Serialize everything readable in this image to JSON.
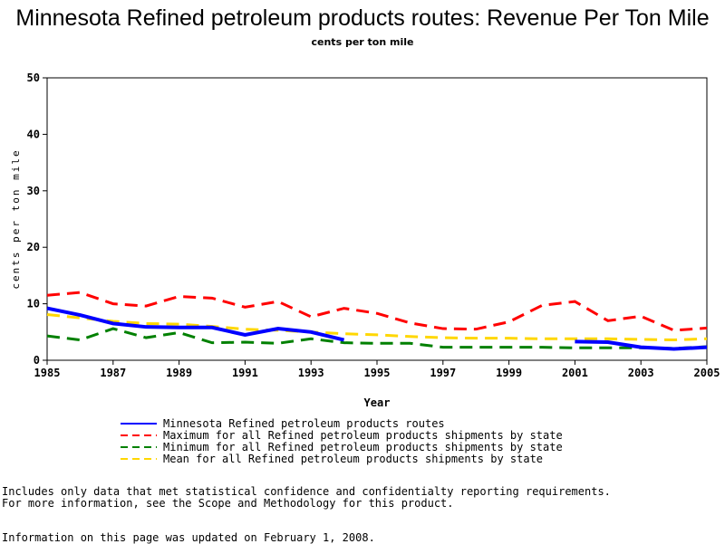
{
  "chart_data": {
    "type": "line",
    "title": "Minnesota Refined petroleum products routes: Revenue Per Ton Mile",
    "subtitle": "cents per ton mile",
    "xlabel": "Year",
    "ylabel": "cents per ton mile",
    "xlim": [
      1985,
      2005
    ],
    "ylim": [
      0,
      50
    ],
    "xticks": [
      "1985",
      "1987",
      "1989",
      "1991",
      "1993",
      "1995",
      "1997",
      "1999",
      "2001",
      "2003",
      "2005"
    ],
    "yticks": [
      "0",
      "10",
      "20",
      "30",
      "40",
      "50"
    ],
    "series": [
      {
        "name": "Minnesota Refined petroleum products routes",
        "color": "#0000ff",
        "style": "solid",
        "segments": [
          {
            "x": [
              1985,
              1986,
              1987,
              1988,
              1989,
              1990,
              1991,
              1992,
              1993,
              1994
            ],
            "y": [
              9.2,
              8.0,
              6.5,
              5.9,
              5.8,
              5.8,
              4.5,
              5.6,
              5.0,
              3.6
            ]
          },
          {
            "x": [
              2001,
              2002,
              2003,
              2004,
              2005
            ],
            "y": [
              3.3,
              3.2,
              2.3,
              2.0,
              2.3
            ]
          }
        ]
      },
      {
        "name": "Maximum for all Refined petroleum products shipments by state",
        "color": "#ff0000",
        "style": "dashed",
        "segments": [
          {
            "x": [
              1985,
              1986,
              1987,
              1988,
              1989,
              1990,
              1991,
              1992,
              1993,
              1994,
              1995,
              1996,
              1997,
              1998,
              1999,
              2000,
              2001,
              2002,
              2003,
              2004,
              2005
            ],
            "y": [
              11.5,
              12.0,
              10.0,
              9.6,
              11.3,
              11.0,
              9.4,
              10.4,
              7.7,
              9.2,
              8.3,
              6.6,
              5.6,
              5.5,
              6.8,
              9.7,
              10.4,
              7.0,
              7.8,
              5.3,
              5.7
            ]
          }
        ]
      },
      {
        "name": "Minimum for all Refined petroleum products shipments by state",
        "color": "#008000",
        "style": "dashed",
        "segments": [
          {
            "x": [
              1985,
              1986,
              1987,
              1988,
              1989,
              1990,
              1991,
              1992,
              1993,
              1994,
              1995,
              1996,
              1997,
              1998,
              1999,
              2000,
              2001,
              2002,
              2003,
              2004,
              2005
            ],
            "y": [
              4.3,
              3.6,
              5.6,
              4.0,
              4.9,
              3.1,
              3.2,
              3.0,
              3.8,
              3.1,
              3.0,
              3.0,
              2.3,
              2.3,
              2.3,
              2.3,
              2.2,
              2.2,
              2.2,
              2.1,
              2.4
            ]
          }
        ]
      },
      {
        "name": "Mean for all Refined petroleum products shipments by state",
        "color": "#ffd700",
        "style": "dashed",
        "segments": [
          {
            "x": [
              1985,
              1986,
              1987,
              1988,
              1989,
              1990,
              1991,
              1992,
              1993,
              1994,
              1995,
              1996,
              1997,
              1998,
              1999,
              2000,
              2001,
              2002,
              2003,
              2004,
              2005
            ],
            "y": [
              8.1,
              7.5,
              6.9,
              6.5,
              6.4,
              6.0,
              5.5,
              5.3,
              5.0,
              4.7,
              4.5,
              4.2,
              4.0,
              3.9,
              3.9,
              3.8,
              3.8,
              3.8,
              3.7,
              3.6,
              3.8
            ]
          }
        ]
      }
    ]
  },
  "notes": {
    "line1": "Includes only data that met statistical confidence and confidentialty reporting requirements.",
    "line2": "For more information, see the Scope and Methodology for this product.",
    "line3": "Information on this page was updated on February 1, 2008."
  }
}
